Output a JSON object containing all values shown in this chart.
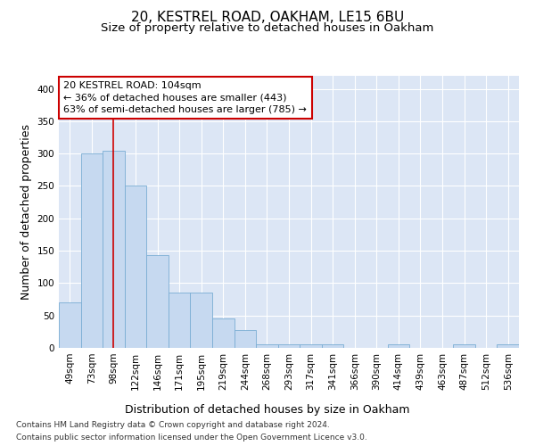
{
  "title_line1": "20, KESTREL ROAD, OAKHAM, LE15 6BU",
  "title_line2": "Size of property relative to detached houses in Oakham",
  "xlabel": "Distribution of detached houses by size in Oakham",
  "ylabel": "Number of detached properties",
  "categories": [
    "49sqm",
    "73sqm",
    "98sqm",
    "122sqm",
    "146sqm",
    "171sqm",
    "195sqm",
    "219sqm",
    "244sqm",
    "268sqm",
    "293sqm",
    "317sqm",
    "341sqm",
    "366sqm",
    "390sqm",
    "414sqm",
    "439sqm",
    "463sqm",
    "487sqm",
    "512sqm",
    "536sqm"
  ],
  "values": [
    70,
    300,
    305,
    250,
    143,
    85,
    85,
    45,
    28,
    5,
    5,
    5,
    5,
    0,
    0,
    5,
    0,
    0,
    5,
    0,
    5
  ],
  "bar_color": "#c6d9f0",
  "bar_edge_color": "#7aadd4",
  "background_color": "#dce6f5",
  "grid_color": "#ffffff",
  "annotation_line1": "20 KESTREL ROAD: 104sqm",
  "annotation_line2": "← 36% of detached houses are smaller (443)",
  "annotation_line3": "63% of semi-detached houses are larger (785) →",
  "vline_x_index": 2,
  "vline_color": "#cc0000",
  "annotation_box_color": "#ffffff",
  "annotation_box_edge_color": "#cc0000",
  "ylim": [
    0,
    420
  ],
  "yticks": [
    0,
    50,
    100,
    150,
    200,
    250,
    300,
    350,
    400
  ],
  "footer_line1": "Contains HM Land Registry data © Crown copyright and database right 2024.",
  "footer_line2": "Contains public sector information licensed under the Open Government Licence v3.0.",
  "title_fontsize": 11,
  "subtitle_fontsize": 9.5,
  "ylabel_fontsize": 9,
  "xlabel_fontsize": 9,
  "tick_fontsize": 7.5,
  "annotation_fontsize": 8,
  "footer_fontsize": 6.5
}
